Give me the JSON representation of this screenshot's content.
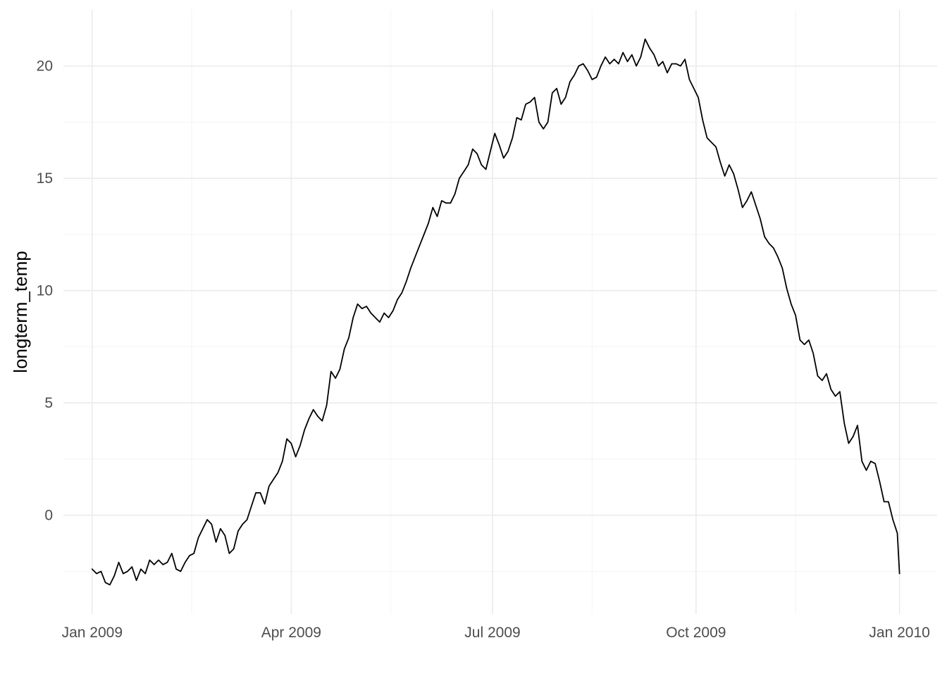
{
  "chart_data": {
    "type": "line",
    "title": "",
    "xlabel": "",
    "ylabel": "longterm_temp",
    "x_start": "2009-01-01",
    "x_end": "2010-01-01",
    "xlim": [
      "2008-12-19",
      "2010-01-18"
    ],
    "ylim": [
      -4.4,
      22.5
    ],
    "y_ticks": [
      0,
      5,
      10,
      15,
      20
    ],
    "y_tick_labels": [
      "0",
      "5",
      "10",
      "15",
      "20"
    ],
    "y_minor_ticks": [
      -2.5,
      2.5,
      7.5,
      12.5,
      17.5
    ],
    "x_ticks": [
      "2009-01-01",
      "2009-04-01",
      "2009-07-01",
      "2009-10-01",
      "2010-01-01"
    ],
    "x_tick_labels": [
      "Jan 2009",
      "Apr 2009",
      "Jul 2009",
      "Oct 2009",
      "Jan 2010"
    ],
    "x_minor_ticks": [
      "2009-02-15",
      "2009-05-16",
      "2009-08-15",
      "2009-11-15"
    ],
    "grid": true,
    "legend": "none",
    "line_color": "#000000",
    "series": [
      {
        "points": [
          [
            "2009-01-01",
            -2.4
          ],
          [
            "2009-01-03",
            -2.6
          ],
          [
            "2009-01-05",
            -2.5
          ],
          [
            "2009-01-07",
            -3.0
          ],
          [
            "2009-01-09",
            -3.1
          ],
          [
            "2009-01-11",
            -2.7
          ],
          [
            "2009-01-13",
            -2.1
          ],
          [
            "2009-01-15",
            -2.6
          ],
          [
            "2009-01-17",
            -2.5
          ],
          [
            "2009-01-19",
            -2.3
          ],
          [
            "2009-01-21",
            -2.9
          ],
          [
            "2009-01-23",
            -2.4
          ],
          [
            "2009-01-25",
            -2.6
          ],
          [
            "2009-01-27",
            -2.0
          ],
          [
            "2009-01-29",
            -2.2
          ],
          [
            "2009-01-31",
            -2.0
          ],
          [
            "2009-02-02",
            -2.2
          ],
          [
            "2009-02-04",
            -2.1
          ],
          [
            "2009-02-06",
            -1.7
          ],
          [
            "2009-02-08",
            -2.4
          ],
          [
            "2009-02-10",
            -2.5
          ],
          [
            "2009-02-12",
            -2.1
          ],
          [
            "2009-02-14",
            -1.8
          ],
          [
            "2009-02-16",
            -1.7
          ],
          [
            "2009-02-18",
            -1.0
          ],
          [
            "2009-02-20",
            -0.6
          ],
          [
            "2009-02-22",
            -0.2
          ],
          [
            "2009-02-24",
            -0.4
          ],
          [
            "2009-02-26",
            -1.2
          ],
          [
            "2009-02-28",
            -0.6
          ],
          [
            "2009-03-02",
            -0.9
          ],
          [
            "2009-03-04",
            -1.7
          ],
          [
            "2009-03-06",
            -1.5
          ],
          [
            "2009-03-08",
            -0.7
          ],
          [
            "2009-03-10",
            -0.4
          ],
          [
            "2009-03-12",
            -0.2
          ],
          [
            "2009-03-14",
            0.4
          ],
          [
            "2009-03-16",
            1.0
          ],
          [
            "2009-03-18",
            1.0
          ],
          [
            "2009-03-20",
            0.5
          ],
          [
            "2009-03-22",
            1.3
          ],
          [
            "2009-03-24",
            1.6
          ],
          [
            "2009-03-26",
            1.9
          ],
          [
            "2009-03-28",
            2.4
          ],
          [
            "2009-03-30",
            3.4
          ],
          [
            "2009-04-01",
            3.2
          ],
          [
            "2009-04-03",
            2.6
          ],
          [
            "2009-04-05",
            3.1
          ],
          [
            "2009-04-07",
            3.8
          ],
          [
            "2009-04-09",
            4.3
          ],
          [
            "2009-04-11",
            4.7
          ],
          [
            "2009-04-13",
            4.4
          ],
          [
            "2009-04-15",
            4.2
          ],
          [
            "2009-04-17",
            4.9
          ],
          [
            "2009-04-19",
            6.4
          ],
          [
            "2009-04-21",
            6.1
          ],
          [
            "2009-04-23",
            6.5
          ],
          [
            "2009-04-25",
            7.4
          ],
          [
            "2009-04-27",
            7.9
          ],
          [
            "2009-04-29",
            8.8
          ],
          [
            "2009-05-01",
            9.4
          ],
          [
            "2009-05-03",
            9.2
          ],
          [
            "2009-05-05",
            9.3
          ],
          [
            "2009-05-07",
            9.0
          ],
          [
            "2009-05-09",
            8.8
          ],
          [
            "2009-05-11",
            8.6
          ],
          [
            "2009-05-13",
            9.0
          ],
          [
            "2009-05-15",
            8.8
          ],
          [
            "2009-05-17",
            9.1
          ],
          [
            "2009-05-19",
            9.6
          ],
          [
            "2009-05-21",
            9.9
          ],
          [
            "2009-05-23",
            10.4
          ],
          [
            "2009-05-25",
            11.0
          ],
          [
            "2009-05-27",
            11.5
          ],
          [
            "2009-05-29",
            12.0
          ],
          [
            "2009-05-31",
            12.5
          ],
          [
            "2009-06-02",
            13.0
          ],
          [
            "2009-06-04",
            13.7
          ],
          [
            "2009-06-06",
            13.3
          ],
          [
            "2009-06-08",
            14.0
          ],
          [
            "2009-06-10",
            13.9
          ],
          [
            "2009-06-12",
            13.9
          ],
          [
            "2009-06-14",
            14.3
          ],
          [
            "2009-06-16",
            15.0
          ],
          [
            "2009-06-18",
            15.3
          ],
          [
            "2009-06-20",
            15.6
          ],
          [
            "2009-06-22",
            16.3
          ],
          [
            "2009-06-24",
            16.1
          ],
          [
            "2009-06-26",
            15.6
          ],
          [
            "2009-06-28",
            15.4
          ],
          [
            "2009-06-30",
            16.2
          ],
          [
            "2009-07-02",
            17.0
          ],
          [
            "2009-07-04",
            16.5
          ],
          [
            "2009-07-06",
            15.9
          ],
          [
            "2009-07-08",
            16.2
          ],
          [
            "2009-07-10",
            16.8
          ],
          [
            "2009-07-12",
            17.7
          ],
          [
            "2009-07-14",
            17.6
          ],
          [
            "2009-07-16",
            18.3
          ],
          [
            "2009-07-18",
            18.4
          ],
          [
            "2009-07-20",
            18.6
          ],
          [
            "2009-07-22",
            17.5
          ],
          [
            "2009-07-24",
            17.2
          ],
          [
            "2009-07-26",
            17.5
          ],
          [
            "2009-07-28",
            18.8
          ],
          [
            "2009-07-30",
            19.0
          ],
          [
            "2009-08-01",
            18.3
          ],
          [
            "2009-08-03",
            18.6
          ],
          [
            "2009-08-05",
            19.3
          ],
          [
            "2009-08-07",
            19.6
          ],
          [
            "2009-08-09",
            20.0
          ],
          [
            "2009-08-11",
            20.1
          ],
          [
            "2009-08-13",
            19.8
          ],
          [
            "2009-08-15",
            19.4
          ],
          [
            "2009-08-17",
            19.5
          ],
          [
            "2009-08-19",
            20.0
          ],
          [
            "2009-08-21",
            20.4
          ],
          [
            "2009-08-23",
            20.1
          ],
          [
            "2009-08-25",
            20.3
          ],
          [
            "2009-08-27",
            20.1
          ],
          [
            "2009-08-29",
            20.6
          ],
          [
            "2009-08-31",
            20.2
          ],
          [
            "2009-09-02",
            20.5
          ],
          [
            "2009-09-04",
            20.0
          ],
          [
            "2009-09-06",
            20.4
          ],
          [
            "2009-09-08",
            21.2
          ],
          [
            "2009-09-10",
            20.8
          ],
          [
            "2009-09-12",
            20.5
          ],
          [
            "2009-09-14",
            20.0
          ],
          [
            "2009-09-16",
            20.2
          ],
          [
            "2009-09-18",
            19.7
          ],
          [
            "2009-09-20",
            20.1
          ],
          [
            "2009-09-22",
            20.1
          ],
          [
            "2009-09-24",
            20.0
          ],
          [
            "2009-09-26",
            20.3
          ],
          [
            "2009-09-28",
            19.4
          ],
          [
            "2009-09-30",
            19.0
          ],
          [
            "2009-10-02",
            18.6
          ],
          [
            "2009-10-04",
            17.6
          ],
          [
            "2009-10-06",
            16.8
          ],
          [
            "2009-10-08",
            16.6
          ],
          [
            "2009-10-10",
            16.4
          ],
          [
            "2009-10-12",
            15.7
          ],
          [
            "2009-10-14",
            15.1
          ],
          [
            "2009-10-16",
            15.6
          ],
          [
            "2009-10-18",
            15.2
          ],
          [
            "2009-10-20",
            14.5
          ],
          [
            "2009-10-22",
            13.7
          ],
          [
            "2009-10-24",
            14.0
          ],
          [
            "2009-10-26",
            14.4
          ],
          [
            "2009-10-28",
            13.8
          ],
          [
            "2009-10-30",
            13.2
          ],
          [
            "2009-11-01",
            12.4
          ],
          [
            "2009-11-03",
            12.1
          ],
          [
            "2009-11-05",
            11.9
          ],
          [
            "2009-11-07",
            11.5
          ],
          [
            "2009-11-09",
            11.0
          ],
          [
            "2009-11-11",
            10.1
          ],
          [
            "2009-11-13",
            9.4
          ],
          [
            "2009-11-15",
            8.9
          ],
          [
            "2009-11-17",
            7.8
          ],
          [
            "2009-11-19",
            7.6
          ],
          [
            "2009-11-21",
            7.8
          ],
          [
            "2009-11-23",
            7.2
          ],
          [
            "2009-11-25",
            6.2
          ],
          [
            "2009-11-27",
            6.0
          ],
          [
            "2009-11-29",
            6.3
          ],
          [
            "2009-12-01",
            5.6
          ],
          [
            "2009-12-03",
            5.3
          ],
          [
            "2009-12-05",
            5.5
          ],
          [
            "2009-12-07",
            4.1
          ],
          [
            "2009-12-09",
            3.2
          ],
          [
            "2009-12-11",
            3.5
          ],
          [
            "2009-12-13",
            4.0
          ],
          [
            "2009-12-15",
            2.4
          ],
          [
            "2009-12-17",
            2.0
          ],
          [
            "2009-12-19",
            2.4
          ],
          [
            "2009-12-21",
            2.3
          ],
          [
            "2009-12-23",
            1.5
          ],
          [
            "2009-12-25",
            0.6
          ],
          [
            "2009-12-27",
            0.6
          ],
          [
            "2009-12-29",
            -0.2
          ],
          [
            "2009-12-31",
            -0.8
          ],
          [
            "2010-01-01",
            -2.6
          ]
        ]
      }
    ]
  }
}
